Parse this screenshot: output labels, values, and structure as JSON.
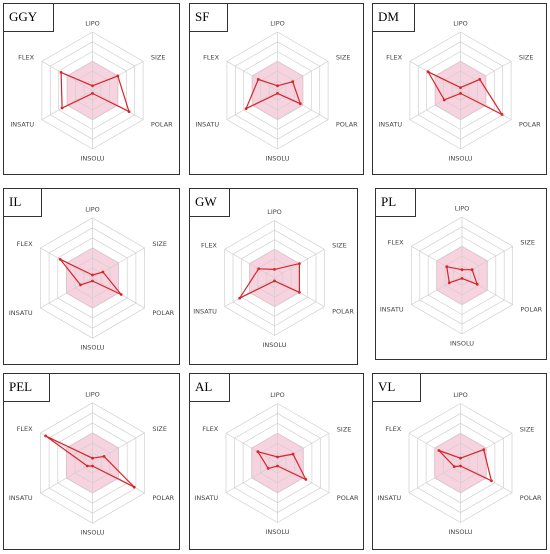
{
  "figure": {
    "axes": [
      "LIPO",
      "SIZE",
      "POLAR",
      "INSOLU",
      "INSATU",
      "FLEX"
    ],
    "colors": {
      "grid": "#d0d0d0",
      "optimal_fill": "#f7d2df",
      "optimal_stroke": "#f0a0bb",
      "profile": "#d9252a",
      "frame": "#333333"
    }
  },
  "chart_data": [
    {
      "type": "radar",
      "title": "GGY",
      "axes": [
        "LIPO",
        "SIZE",
        "POLAR",
        "INSOLU",
        "INSATU",
        "FLEX"
      ],
      "rings": 6,
      "range": [
        0,
        1
      ],
      "optimal_range": 0.5,
      "values": [
        0.08,
        0.5,
        0.72,
        0.05,
        0.6,
        0.62
      ]
    },
    {
      "type": "radar",
      "title": "SF",
      "axes": [
        "LIPO",
        "SIZE",
        "POLAR",
        "INSOLU",
        "INSATU",
        "FLEX"
      ],
      "rings": 6,
      "range": [
        0,
        1
      ],
      "optimal_range": 0.5,
      "values": [
        0.08,
        0.3,
        0.45,
        0.05,
        0.62,
        0.38
      ]
    },
    {
      "type": "radar",
      "title": "DM",
      "axes": [
        "LIPO",
        "SIZE",
        "POLAR",
        "INSOLU",
        "INSATU",
        "FLEX"
      ],
      "rings": 6,
      "range": [
        0,
        1
      ],
      "optimal_range": 0.5,
      "values": [
        0.05,
        0.38,
        0.82,
        0.05,
        0.32,
        0.64
      ]
    },
    {
      "type": "radar",
      "title": "IL",
      "axes": [
        "LIPO",
        "SIZE",
        "POLAR",
        "INSOLU",
        "INSATU",
        "FLEX"
      ],
      "rings": 6,
      "range": [
        0,
        1
      ],
      "optimal_range": 0.5,
      "values": [
        0.05,
        0.2,
        0.55,
        0.05,
        0.23,
        0.62
      ]
    },
    {
      "type": "radar",
      "title": "GW",
      "axes": [
        "LIPO",
        "SIZE",
        "POLAR",
        "INSOLU",
        "INSATU",
        "FLEX"
      ],
      "rings": 6,
      "range": [
        0,
        1
      ],
      "optimal_range": 0.5,
      "values": [
        0.15,
        0.5,
        0.5,
        0.05,
        0.7,
        0.32
      ]
    },
    {
      "type": "radar",
      "title": "PL",
      "axes": [
        "LIPO",
        "SIZE",
        "POLAR",
        "INSOLU",
        "INSATU",
        "FLEX"
      ],
      "rings": 6,
      "range": [
        0,
        1
      ],
      "optimal_range": 0.5,
      "values": [
        0.1,
        0.2,
        0.3,
        0.05,
        0.25,
        0.3
      ]
    },
    {
      "type": "radar",
      "title": "PEL",
      "axes": [
        "LIPO",
        "SIZE",
        "POLAR",
        "INSOLU",
        "INSATU",
        "FLEX"
      ],
      "rings": 6,
      "range": [
        0,
        1
      ],
      "optimal_range": 0.5,
      "values": [
        0.08,
        0.22,
        0.8,
        0.05,
        0.1,
        0.9
      ]
    },
    {
      "type": "radar",
      "title": "AL",
      "axes": [
        "LIPO",
        "SIZE",
        "POLAR",
        "INSOLU",
        "INSATU",
        "FLEX"
      ],
      "rings": 6,
      "range": [
        0,
        1
      ],
      "optimal_range": 0.5,
      "values": [
        0.1,
        0.3,
        0.55,
        0.05,
        0.18,
        0.38
      ]
    },
    {
      "type": "radar",
      "title": "VL",
      "axes": [
        "LIPO",
        "SIZE",
        "POLAR",
        "INSOLU",
        "INSATU",
        "FLEX"
      ],
      "rings": 6,
      "range": [
        0,
        1
      ],
      "optimal_range": 0.5,
      "values": [
        0.08,
        0.45,
        0.6,
        0.05,
        0.12,
        0.42
      ]
    }
  ]
}
